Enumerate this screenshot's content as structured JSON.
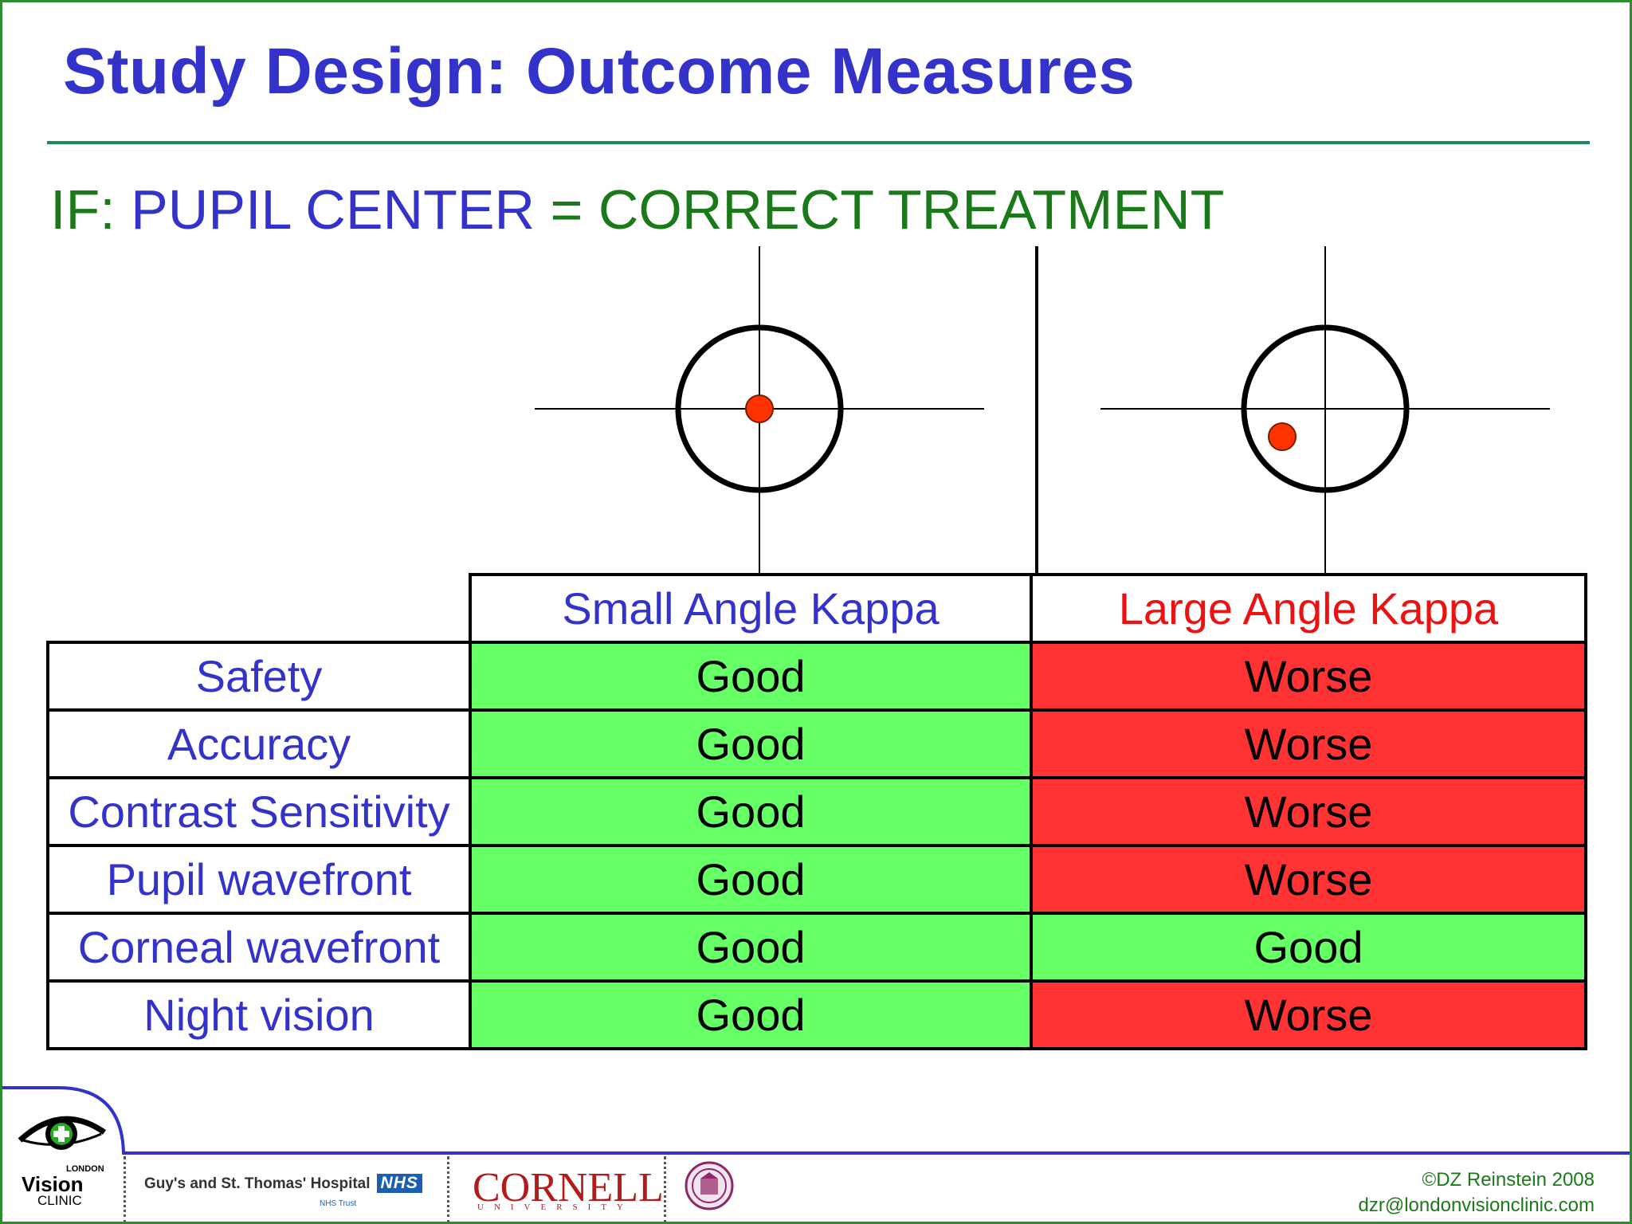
{
  "slide": {
    "title": "Study Design: Outcome Measures",
    "subtitle": {
      "prefix": "IF:",
      "part_a": "PUPIL CENTER",
      "equals": "=",
      "part_b": "CORRECT TREATMENT"
    }
  },
  "diagram": {
    "items": [
      {
        "name": "small-angle-kappa-target",
        "pupil_center_on_crosshair": true
      },
      {
        "name": "large-angle-kappa-target",
        "pupil_center_on_crosshair": false
      }
    ],
    "colors": {
      "ring": "#000000",
      "dot": "#ff3300",
      "crosshair": "#000000"
    }
  },
  "table": {
    "columns": [
      "Small Angle Kappa",
      "Large Angle Kappa"
    ],
    "rows": [
      {
        "label": "Safety",
        "small": "Good",
        "large": "Worse"
      },
      {
        "label": "Accuracy",
        "small": "Good",
        "large": "Worse"
      },
      {
        "label": "Contrast Sensitivity",
        "small": "Good",
        "large": "Worse"
      },
      {
        "label": "Pupil wavefront",
        "small": "Good",
        "large": "Worse"
      },
      {
        "label": "Corneal wavefront",
        "small": "Good",
        "large": "Good"
      },
      {
        "label": "Night vision",
        "small": "Good",
        "large": "Worse"
      }
    ],
    "colors": {
      "good": "#66ff66",
      "worse": "#ff3333",
      "header_small": "#3333cc",
      "header_large": "#ee1111"
    }
  },
  "footer": {
    "lvc_logo": {
      "top": "LONDON",
      "main": "Vision",
      "bottom": "CLINIC"
    },
    "hospital": "Guy's and St. Thomas' Hospital",
    "nhs": "NHS",
    "nhs_sub": "NHS Trust",
    "cornell": "CORNELL",
    "cornell_sub": "UNIVERSITY",
    "copyright": "©DZ Reinstein 2008",
    "email": "dzr@londonvisionclinic.com"
  }
}
